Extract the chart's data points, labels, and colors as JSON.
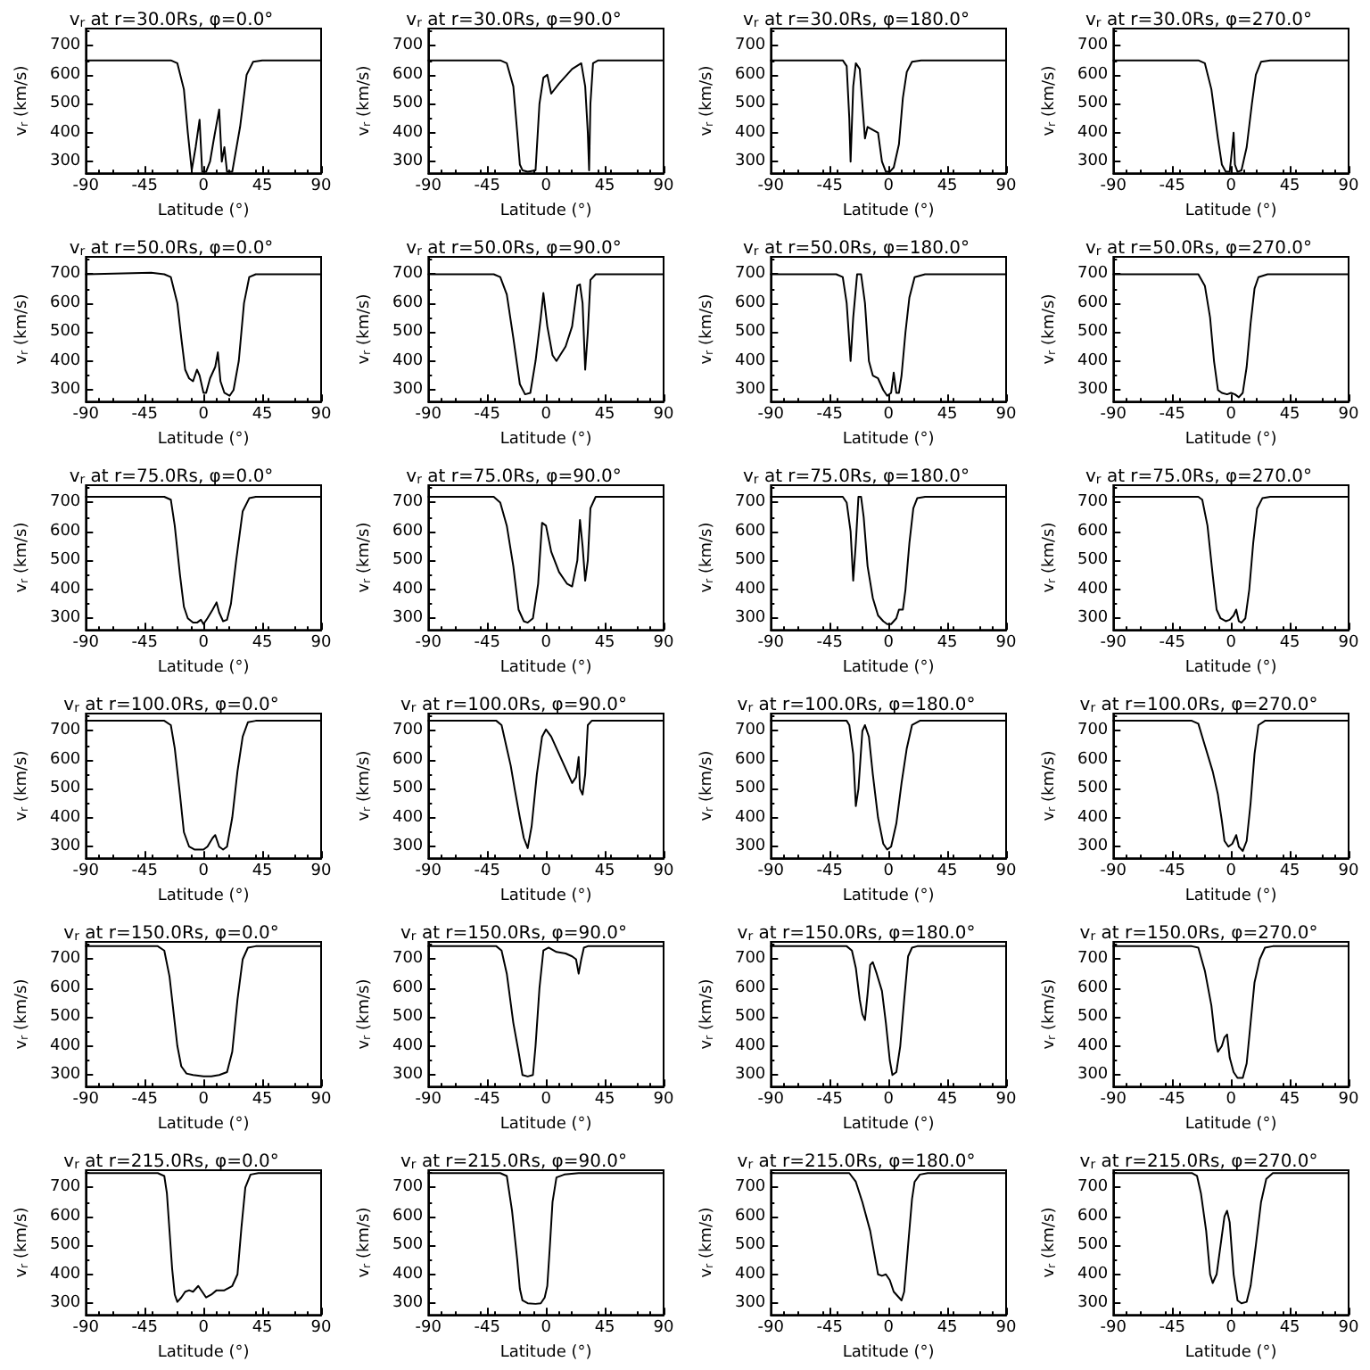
{
  "chart_data": [
    {
      "type": "line",
      "title": "v$_{r}$ at r=30.0Rs, φ=0.0°",
      "xlabel": "Latitude (°)",
      "ylabel": "v$_{r}$ (km/s)",
      "xlim": [
        -90,
        90
      ],
      "xticks": [
        -90,
        -45,
        0,
        45,
        90
      ],
      "ylim": [
        260,
        760
      ],
      "yticks": [
        300,
        400,
        500,
        600,
        700
      ],
      "grid": false,
      "marker": "none",
      "line_style": "solid",
      "x": [
        -90,
        -25,
        -20,
        -15,
        -12,
        -9,
        -6,
        -3,
        -1,
        2,
        5,
        8,
        12,
        14,
        16,
        18,
        22,
        28,
        33,
        38,
        45,
        90
      ],
      "series": [
        {
          "color": "#000000",
          "values": [
            650,
            650,
            640,
            550,
            400,
            270,
            350,
            445,
            265,
            265,
            300,
            380,
            480,
            300,
            350,
            265,
            265,
            420,
            600,
            645,
            650,
            650
          ]
        }
      ]
    },
    {
      "type": "line",
      "title": "v$_{r}$ at r=30.0Rs, φ=90.0°",
      "xlabel": "Latitude (°)",
      "ylabel": "v$_{r}$ (km/s)",
      "xlim": [
        -90,
        90
      ],
      "xticks": [
        -90,
        -45,
        0,
        45,
        90
      ],
      "ylim": [
        260,
        760
      ],
      "yticks": [
        300,
        400,
        500,
        600,
        700
      ],
      "grid": false,
      "marker": "none",
      "line_style": "solid",
      "x": [
        -90,
        -35,
        -30,
        -25,
        -22,
        -20,
        -18,
        -14,
        -8,
        -5,
        -2,
        1,
        4,
        10,
        20,
        27,
        30,
        32,
        33,
        34,
        36,
        40,
        90
      ],
      "series": [
        {
          "color": "#000000",
          "values": [
            650,
            650,
            640,
            560,
            400,
            290,
            270,
            265,
            270,
            500,
            590,
            600,
            535,
            570,
            620,
            640,
            560,
            400,
            270,
            500,
            640,
            650,
            650
          ]
        }
      ]
    },
    {
      "type": "line",
      "title": "v$_{r}$ at r=30.0Rs, φ=180.0°",
      "xlabel": "Latitude (°)",
      "ylabel": "v$_{r}$ (km/s)",
      "xlim": [
        -90,
        90
      ],
      "xticks": [
        -90,
        -45,
        0,
        45,
        90
      ],
      "ylim": [
        260,
        760
      ],
      "yticks": [
        300,
        400,
        500,
        600,
        700
      ],
      "grid": false,
      "marker": "none",
      "line_style": "solid",
      "x": [
        -90,
        -35,
        -32,
        -30,
        -29,
        -27,
        -25,
        -22,
        -20,
        -18,
        -16,
        -12,
        -8,
        -5,
        -2,
        1,
        4,
        8,
        11,
        14,
        18,
        25,
        90
      ],
      "series": [
        {
          "color": "#000000",
          "values": [
            650,
            650,
            630,
            450,
            300,
            560,
            640,
            620,
            500,
            380,
            420,
            410,
            400,
            300,
            265,
            265,
            280,
            360,
            520,
            610,
            645,
            650,
            650
          ]
        }
      ]
    },
    {
      "type": "line",
      "title": "v$_{r}$ at r=30.0Rs, φ=270.0°",
      "xlabel": "Latitude (°)",
      "ylabel": "v$_{r}$ (km/s)",
      "xlim": [
        -90,
        90
      ],
      "xticks": [
        -90,
        -45,
        0,
        45,
        90
      ],
      "ylim": [
        260,
        760
      ],
      "yticks": [
        300,
        400,
        500,
        600,
        700
      ],
      "grid": false,
      "marker": "none",
      "line_style": "solid",
      "x": [
        -90,
        -25,
        -20,
        -15,
        -10,
        -7,
        -4,
        -1,
        1,
        2,
        3,
        5,
        8,
        12,
        16,
        19,
        23,
        30,
        90
      ],
      "series": [
        {
          "color": "#000000",
          "values": [
            650,
            650,
            640,
            550,
            380,
            290,
            265,
            265,
            350,
            400,
            290,
            265,
            270,
            350,
            500,
            600,
            645,
            650,
            650
          ]
        }
      ]
    },
    {
      "type": "line",
      "title": "v$_{r}$ at r=50.0Rs, φ=0.0°",
      "xlabel": "Latitude (°)",
      "ylabel": "v$_{r}$ (km/s)",
      "xlim": [
        -90,
        90
      ],
      "xticks": [
        -90,
        -45,
        0,
        45,
        90
      ],
      "ylim": [
        260,
        760
      ],
      "yticks": [
        300,
        400,
        500,
        600,
        700
      ],
      "grid": false,
      "marker": "none",
      "line_style": "solid",
      "x": [
        -90,
        -40,
        -30,
        -25,
        -20,
        -17,
        -14,
        -11,
        -8,
        -5,
        -3,
        0,
        2,
        5,
        9,
        11,
        13,
        16,
        20,
        23,
        27,
        31,
        35,
        40,
        90
      ],
      "series": [
        {
          "color": "#000000",
          "values": [
            700,
            705,
            700,
            690,
            600,
            480,
            370,
            340,
            330,
            370,
            350,
            290,
            290,
            340,
            380,
            430,
            330,
            290,
            280,
            300,
            400,
            600,
            690,
            700,
            700
          ]
        }
      ]
    },
    {
      "type": "line",
      "title": "v$_{r}$ at r=50.0Rs, φ=90.0°",
      "xlabel": "Latitude (°)",
      "ylabel": "v$_{r}$ (km/s)",
      "xlim": [
        -90,
        90
      ],
      "xticks": [
        -90,
        -45,
        0,
        45,
        90
      ],
      "ylim": [
        260,
        760
      ],
      "yticks": [
        300,
        400,
        500,
        600,
        700
      ],
      "grid": false,
      "marker": "none",
      "line_style": "solid",
      "x": [
        -90,
        -40,
        -35,
        -30,
        -25,
        -20,
        -16,
        -12,
        -8,
        -4,
        -2,
        1,
        5,
        8,
        15,
        20,
        24,
        26,
        28,
        30,
        32,
        34,
        38,
        90
      ],
      "series": [
        {
          "color": "#000000",
          "values": [
            700,
            700,
            690,
            630,
            480,
            320,
            285,
            290,
            400,
            550,
            635,
            520,
            420,
            400,
            450,
            520,
            660,
            665,
            600,
            370,
            500,
            680,
            700,
            700
          ]
        }
      ]
    },
    {
      "type": "line",
      "title": "v$_{r}$ at r=50.0Rs, φ=180.0°",
      "xlabel": "Latitude (°)",
      "ylabel": "v$_{r}$ (km/s)",
      "xlim": [
        -90,
        90
      ],
      "xticks": [
        -90,
        -45,
        0,
        45,
        90
      ],
      "ylim": [
        260,
        760
      ],
      "yticks": [
        300,
        400,
        500,
        600,
        700
      ],
      "grid": false,
      "marker": "none",
      "line_style": "solid",
      "x": [
        -90,
        -40,
        -35,
        -32,
        -29,
        -27,
        -24,
        -21,
        -18,
        -15,
        -12,
        -8,
        -4,
        -1,
        2,
        4,
        6,
        8,
        10,
        13,
        16,
        20,
        28,
        90
      ],
      "series": [
        {
          "color": "#000000",
          "values": [
            700,
            700,
            690,
            600,
            400,
            550,
            700,
            700,
            600,
            400,
            350,
            340,
            300,
            280,
            290,
            360,
            290,
            290,
            350,
            500,
            620,
            690,
            700,
            700
          ]
        }
      ]
    },
    {
      "type": "line",
      "title": "v$_{r}$ at r=50.0Rs, φ=270.0°",
      "xlabel": "Latitude (°)",
      "ylabel": "v$_{r}$ (km/s)",
      "xlim": [
        -90,
        90
      ],
      "xticks": [
        -90,
        -45,
        0,
        45,
        90
      ],
      "ylim": [
        260,
        760
      ],
      "yticks": [
        300,
        400,
        500,
        600,
        700
      ],
      "grid": false,
      "marker": "none",
      "line_style": "solid",
      "x": [
        -90,
        -25,
        -20,
        -16,
        -13,
        -10,
        -7,
        -3,
        0,
        3,
        6,
        9,
        12,
        15,
        18,
        21,
        28,
        90
      ],
      "series": [
        {
          "color": "#000000",
          "values": [
            700,
            700,
            660,
            550,
            400,
            300,
            290,
            285,
            290,
            285,
            275,
            290,
            380,
            530,
            650,
            690,
            700,
            700
          ]
        }
      ]
    },
    {
      "type": "line",
      "title": "v$_{r}$ at r=75.0Rs, φ=0.0°",
      "xlabel": "Latitude (°)",
      "ylabel": "v$_{r}$ (km/s)",
      "xlim": [
        -90,
        90
      ],
      "xticks": [
        -90,
        -45,
        0,
        45,
        90
      ],
      "ylim": [
        260,
        760
      ],
      "yticks": [
        300,
        400,
        500,
        600,
        700
      ],
      "grid": false,
      "marker": "none",
      "line_style": "solid",
      "x": [
        -90,
        -30,
        -25,
        -22,
        -18,
        -15,
        -12,
        -8,
        -5,
        -2,
        0,
        3,
        7,
        10,
        12,
        15,
        18,
        21,
        25,
        30,
        35,
        40,
        90
      ],
      "series": [
        {
          "color": "#000000",
          "values": [
            720,
            720,
            710,
            620,
            450,
            340,
            300,
            285,
            285,
            295,
            280,
            300,
            330,
            355,
            320,
            290,
            295,
            350,
            500,
            670,
            715,
            720,
            720
          ]
        }
      ]
    },
    {
      "type": "line",
      "title": "v$_{r}$ at r=75.0Rs, φ=90.0°",
      "xlabel": "Latitude (°)",
      "ylabel": "v$_{r}$ (km/s)",
      "xlim": [
        -90,
        90
      ],
      "xticks": [
        -90,
        -45,
        0,
        45,
        90
      ],
      "ylim": [
        260,
        760
      ],
      "yticks": [
        300,
        400,
        500,
        600,
        700
      ],
      "grid": false,
      "marker": "none",
      "line_style": "solid",
      "x": [
        -90,
        -40,
        -35,
        -30,
        -25,
        -21,
        -17,
        -14,
        -10,
        -6,
        -3,
        0,
        4,
        10,
        16,
        20,
        24,
        26,
        28,
        30,
        32,
        34,
        38,
        90
      ],
      "series": [
        {
          "color": "#000000",
          "values": [
            720,
            720,
            700,
            620,
            480,
            330,
            290,
            285,
            300,
            420,
            630,
            620,
            530,
            460,
            420,
            410,
            500,
            640,
            550,
            430,
            500,
            680,
            720,
            720
          ]
        }
      ]
    },
    {
      "type": "line",
      "title": "v$_{r}$ at r=75.0Rs, φ=180.0°",
      "xlabel": "Latitude (°)",
      "ylabel": "v$_{r}$ (km/s)",
      "xlim": [
        -90,
        90
      ],
      "xticks": [
        -90,
        -45,
        0,
        45,
        90
      ],
      "ylim": [
        260,
        760
      ],
      "yticks": [
        300,
        400,
        500,
        600,
        700
      ],
      "grid": false,
      "marker": "none",
      "line_style": "solid",
      "x": [
        -90,
        -35,
        -32,
        -29,
        -27,
        -25,
        -23,
        -21,
        -19,
        -16,
        -12,
        -8,
        -4,
        -1,
        2,
        6,
        8,
        11,
        13,
        16,
        19,
        22,
        28,
        90
      ],
      "series": [
        {
          "color": "#000000",
          "values": [
            720,
            720,
            700,
            600,
            430,
            560,
            720,
            720,
            650,
            480,
            370,
            310,
            290,
            280,
            280,
            300,
            330,
            330,
            400,
            560,
            680,
            715,
            720,
            720
          ]
        }
      ]
    },
    {
      "type": "line",
      "title": "v$_{r}$ at r=75.0Rs, φ=270.0°",
      "xlabel": "Latitude (°)",
      "ylabel": "v$_{r}$ (km/s)",
      "xlim": [
        -90,
        90
      ],
      "xticks": [
        -90,
        -45,
        0,
        45,
        90
      ],
      "ylim": [
        260,
        760
      ],
      "yticks": [
        300,
        400,
        500,
        600,
        700
      ],
      "grid": false,
      "marker": "none",
      "line_style": "solid",
      "x": [
        -90,
        -25,
        -22,
        -18,
        -14,
        -11,
        -8,
        -4,
        -1,
        2,
        4,
        6,
        8,
        11,
        14,
        17,
        20,
        24,
        30,
        90
      ],
      "series": [
        {
          "color": "#000000",
          "values": [
            720,
            720,
            710,
            620,
            450,
            330,
            300,
            290,
            295,
            310,
            330,
            290,
            285,
            300,
            400,
            560,
            680,
            715,
            720,
            720
          ]
        }
      ]
    },
    {
      "type": "line",
      "title": "v$_{r}$ at r=100.0Rs, φ=0.0°",
      "xlabel": "Latitude (°)",
      "ylabel": "v$_{r}$ (km/s)",
      "xlim": [
        -90,
        90
      ],
      "xticks": [
        -90,
        -45,
        0,
        45,
        90
      ],
      "ylim": [
        260,
        760
      ],
      "yticks": [
        300,
        400,
        500,
        600,
        700
      ],
      "grid": false,
      "marker": "none",
      "line_style": "solid",
      "x": [
        -90,
        -30,
        -25,
        -22,
        -18,
        -15,
        -11,
        -7,
        -3,
        0,
        3,
        7,
        9,
        12,
        15,
        18,
        22,
        26,
        30,
        34,
        40,
        90
      ],
      "series": [
        {
          "color": "#000000",
          "values": [
            735,
            735,
            720,
            640,
            480,
            350,
            300,
            290,
            290,
            290,
            300,
            330,
            340,
            300,
            290,
            300,
            400,
            560,
            680,
            730,
            735,
            735
          ]
        }
      ]
    },
    {
      "type": "line",
      "title": "v$_{r}$ at r=100.0Rs, φ=90.0°",
      "xlabel": "Latitude (°)",
      "ylabel": "v$_{r}$ (km/s)",
      "xlim": [
        -90,
        90
      ],
      "xticks": [
        -90,
        -45,
        0,
        45,
        90
      ],
      "ylim": [
        260,
        760
      ],
      "yticks": [
        300,
        400,
        500,
        600,
        700
      ],
      "grid": false,
      "marker": "none",
      "line_style": "solid",
      "x": [
        -90,
        -38,
        -34,
        -30,
        -27,
        -24,
        -20,
        -17,
        -14,
        -11,
        -7,
        -3,
        0,
        4,
        10,
        16,
        20,
        23,
        25,
        26,
        28,
        30,
        32,
        35,
        90
      ],
      "series": [
        {
          "color": "#000000",
          "values": [
            735,
            735,
            720,
            640,
            580,
            500,
            400,
            330,
            295,
            370,
            550,
            680,
            705,
            680,
            620,
            560,
            520,
            540,
            610,
            500,
            480,
            550,
            720,
            735,
            735
          ]
        }
      ]
    },
    {
      "type": "line",
      "title": "v$_{r}$ at r=100.0Rs, φ=180.0°",
      "xlabel": "Latitude (°)",
      "ylabel": "v$_{r}$ (km/s)",
      "xlim": [
        -90,
        90
      ],
      "xticks": [
        -90,
        -45,
        0,
        45,
        90
      ],
      "ylim": [
        260,
        760
      ],
      "yticks": [
        300,
        400,
        500,
        600,
        700
      ],
      "grid": false,
      "marker": "none",
      "line_style": "solid",
      "x": [
        -90,
        -32,
        -30,
        -27,
        -25,
        -23,
        -20,
        -18,
        -15,
        -12,
        -8,
        -4,
        -1,
        2,
        6,
        10,
        14,
        18,
        24,
        90
      ],
      "series": [
        {
          "color": "#000000",
          "values": [
            735,
            735,
            720,
            620,
            440,
            500,
            700,
            720,
            680,
            550,
            400,
            310,
            290,
            300,
            380,
            520,
            640,
            720,
            735,
            735
          ]
        }
      ]
    },
    {
      "type": "line",
      "title": "v$_{r}$ at r=100.0Rs, φ=270.0°",
      "xlabel": "Latitude (°)",
      "ylabel": "v$_{r}$ (km/s)",
      "xlim": [
        -90,
        90
      ],
      "xticks": [
        -90,
        -45,
        0,
        45,
        90
      ],
      "ylim": [
        260,
        760
      ],
      "yticks": [
        300,
        400,
        500,
        600,
        700
      ],
      "grid": false,
      "marker": "none",
      "line_style": "solid",
      "x": [
        -90,
        -30,
        -25,
        -20,
        -14,
        -10,
        -7,
        -5,
        -2,
        1,
        4,
        6,
        9,
        12,
        15,
        18,
        21,
        26,
        90
      ],
      "series": [
        {
          "color": "#000000",
          "values": [
            735,
            735,
            725,
            650,
            560,
            480,
            390,
            320,
            300,
            310,
            340,
            300,
            285,
            320,
            450,
            620,
            720,
            735,
            735
          ]
        }
      ]
    },
    {
      "type": "line",
      "title": "v$_{r}$ at r=150.0Rs, φ=0.0°",
      "xlabel": "Latitude (°)",
      "ylabel": "v$_{r}$ (km/s)",
      "xlim": [
        -90,
        90
      ],
      "xticks": [
        -90,
        -45,
        0,
        45,
        90
      ],
      "ylim": [
        260,
        760
      ],
      "yticks": [
        300,
        400,
        500,
        600,
        700
      ],
      "grid": false,
      "marker": "none",
      "line_style": "solid",
      "x": [
        -90,
        -35,
        -30,
        -26,
        -23,
        -20,
        -17,
        -13,
        -8,
        0,
        6,
        12,
        18,
        22,
        26,
        30,
        34,
        40,
        90
      ],
      "series": [
        {
          "color": "#000000",
          "values": [
            745,
            745,
            730,
            640,
            520,
            400,
            330,
            305,
            300,
            295,
            295,
            300,
            310,
            380,
            560,
            700,
            740,
            745,
            745
          ]
        }
      ]
    },
    {
      "type": "line",
      "title": "v$_{r}$ at r=150.0Rs, φ=90.0°",
      "xlabel": "Latitude (°)",
      "ylabel": "v$_{r}$ (km/s)",
      "xlim": [
        -90,
        90
      ],
      "xticks": [
        -90,
        -45,
        0,
        45,
        90
      ],
      "ylim": [
        260,
        760
      ],
      "yticks": [
        300,
        400,
        500,
        600,
        700
      ],
      "grid": false,
      "marker": "none",
      "line_style": "solid",
      "x": [
        -90,
        -38,
        -34,
        -30,
        -25,
        -21,
        -18,
        -14,
        -10,
        -8,
        -5,
        -2,
        2,
        8,
        15,
        20,
        23,
        25,
        27,
        29,
        32,
        90
      ],
      "series": [
        {
          "color": "#000000",
          "values": [
            745,
            745,
            730,
            650,
            480,
            380,
            300,
            295,
            300,
            400,
            600,
            730,
            740,
            725,
            720,
            710,
            700,
            650,
            700,
            740,
            745,
            745
          ]
        }
      ]
    },
    {
      "type": "line",
      "title": "v$_{r}$ at r=150.0Rs, φ=180.0°",
      "xlabel": "Latitude (°)",
      "ylabel": "v$_{r}$ (km/s)",
      "xlim": [
        -90,
        90
      ],
      "xticks": [
        -90,
        -45,
        0,
        45,
        90
      ],
      "ylim": [
        260,
        760
      ],
      "yticks": [
        300,
        400,
        500,
        600,
        700
      ],
      "grid": false,
      "marker": "none",
      "line_style": "solid",
      "x": [
        -90,
        -32,
        -28,
        -25,
        -22,
        -20,
        -18,
        -16,
        -14,
        -12,
        -9,
        -5,
        -2,
        1,
        3,
        6,
        9,
        12,
        15,
        18,
        22,
        90
      ],
      "series": [
        {
          "color": "#000000",
          "values": [
            745,
            745,
            730,
            670,
            560,
            510,
            490,
            580,
            680,
            690,
            650,
            590,
            480,
            350,
            300,
            310,
            400,
            560,
            710,
            740,
            745,
            745
          ]
        }
      ]
    },
    {
      "type": "line",
      "title": "v$_{r}$ at r=150.0Rs, φ=270.0°",
      "xlabel": "Latitude (°)",
      "ylabel": "v$_{r}$ (km/s)",
      "xlim": [
        -90,
        90
      ],
      "xticks": [
        -90,
        -45,
        0,
        45,
        90
      ],
      "ylim": [
        260,
        760
      ],
      "yticks": [
        300,
        400,
        500,
        600,
        700
      ],
      "grid": false,
      "marker": "none",
      "line_style": "solid",
      "x": [
        -90,
        -30,
        -25,
        -20,
        -15,
        -12,
        -10,
        -7,
        -5,
        -3,
        -1,
        2,
        5,
        9,
        12,
        15,
        18,
        22,
        26,
        32,
        90
      ],
      "series": [
        {
          "color": "#000000",
          "values": [
            745,
            745,
            740,
            660,
            540,
            420,
            380,
            400,
            430,
            440,
            360,
            310,
            290,
            290,
            340,
            480,
            620,
            700,
            740,
            745,
            745
          ]
        }
      ]
    },
    {
      "type": "line",
      "title": "v$_{r}$ at r=215.0Rs, φ=0.0°",
      "xlabel": "Latitude (°)",
      "ylabel": "v$_{r}$ (km/s)",
      "xlim": [
        -90,
        90
      ],
      "xticks": [
        -90,
        -45,
        0,
        45,
        90
      ],
      "ylim": [
        260,
        760
      ],
      "yticks": [
        300,
        400,
        500,
        600,
        700
      ],
      "grid": false,
      "marker": "none",
      "line_style": "solid",
      "x": [
        -90,
        -35,
        -30,
        -28,
        -26,
        -24,
        -22,
        -20,
        -17,
        -14,
        -11,
        -8,
        -4,
        -1,
        2,
        6,
        10,
        16,
        22,
        26,
        29,
        32,
        36,
        42,
        90
      ],
      "series": [
        {
          "color": "#000000",
          "values": [
            750,
            750,
            740,
            680,
            550,
            420,
            330,
            305,
            320,
            340,
            345,
            340,
            360,
            340,
            320,
            330,
            345,
            345,
            360,
            400,
            560,
            700,
            745,
            750,
            750
          ]
        }
      ]
    },
    {
      "type": "line",
      "title": "v$_{r}$ at r=215.0Rs, φ=90.0°",
      "xlabel": "Latitude (°)",
      "ylabel": "v$_{r}$ (km/s)",
      "xlim": [
        -90,
        90
      ],
      "xticks": [
        -90,
        -45,
        0,
        45,
        90
      ],
      "ylim": [
        260,
        760
      ],
      "yticks": [
        300,
        400,
        500,
        600,
        700
      ],
      "grid": false,
      "marker": "none",
      "line_style": "solid",
      "x": [
        -90,
        -35,
        -30,
        -26,
        -22,
        -20,
        -18,
        -14,
        -8,
        -4,
        -1,
        1,
        3,
        5,
        8,
        14,
        25,
        90
      ],
      "series": [
        {
          "color": "#000000",
          "values": [
            750,
            750,
            740,
            620,
            450,
            350,
            310,
            300,
            298,
            300,
            320,
            360,
            500,
            650,
            735,
            745,
            750,
            750
          ]
        }
      ]
    },
    {
      "type": "line",
      "title": "v$_{r}$ at r=215.0Rs, φ=180.0°",
      "xlabel": "Latitude (°)",
      "ylabel": "v$_{r}$ (km/s)",
      "xlim": [
        -90,
        90
      ],
      "xticks": [
        -90,
        -45,
        0,
        45,
        90
      ],
      "ylim": [
        260,
        760
      ],
      "yticks": [
        300,
        400,
        500,
        600,
        700
      ],
      "grid": false,
      "marker": "none",
      "line_style": "solid",
      "x": [
        -90,
        -30,
        -25,
        -20,
        -14,
        -10,
        -8,
        -5,
        -2,
        1,
        4,
        8,
        10,
        12,
        15,
        18,
        20,
        24,
        30,
        90
      ],
      "series": [
        {
          "color": "#000000",
          "values": [
            750,
            750,
            720,
            650,
            550,
            450,
            400,
            395,
            400,
            380,
            340,
            320,
            310,
            340,
            500,
            660,
            720,
            745,
            750,
            750
          ]
        }
      ]
    },
    {
      "type": "line",
      "title": "v$_{r}$ at r=215.0Rs, φ=270.0°",
      "xlabel": "Latitude (°)",
      "ylabel": "v$_{r}$ (km/s)",
      "xlim": [
        -90,
        90
      ],
      "xticks": [
        -90,
        -45,
        0,
        45,
        90
      ],
      "ylim": [
        260,
        760
      ],
      "yticks": [
        300,
        400,
        500,
        600,
        700
      ],
      "grid": false,
      "marker": "none",
      "line_style": "solid",
      "x": [
        -90,
        -30,
        -26,
        -23,
        -19,
        -16,
        -14,
        -11,
        -8,
        -5,
        -3,
        -1,
        2,
        5,
        8,
        12,
        15,
        19,
        23,
        27,
        32,
        90
      ],
      "series": [
        {
          "color": "#000000",
          "values": [
            750,
            750,
            740,
            680,
            550,
            400,
            370,
            400,
            500,
            600,
            620,
            580,
            400,
            310,
            300,
            305,
            360,
            500,
            650,
            730,
            750,
            750
          ]
        }
      ]
    }
  ]
}
